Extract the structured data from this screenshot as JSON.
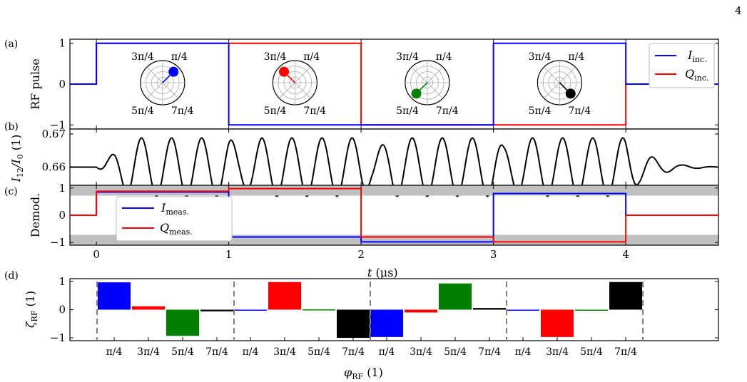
{
  "page_number": "4",
  "panel_labels": [
    "(a)",
    "(b)",
    "(c)",
    "(d)"
  ],
  "colors": {
    "i_series": "#0000ff",
    "q_series": "#ff0000",
    "signal": "#000000",
    "band": "#c0c0c0",
    "phase_colors": [
      "#0000ff",
      "#ff0000",
      "#008000",
      "#000000"
    ]
  },
  "chart_data": [
    {
      "type": "line",
      "panel": "(a)",
      "ylabel": "RF pulse",
      "xlim": [
        -0.2,
        4.7
      ],
      "ylim": [
        -1.1,
        1.1
      ],
      "yticks": [
        "1",
        "0",
        "−1"
      ],
      "ytick_values": [
        1,
        0,
        -1
      ],
      "legend": {
        "placement": "top-right",
        "entries": [
          {
            "base": "I",
            "sub": "inc.",
            "color": "#0000ff"
          },
          {
            "base": "Q",
            "sub": "inc.",
            "color": "#ff0000"
          }
        ]
      },
      "series": [
        {
          "name": "I_inc.",
          "color": "#0000ff",
          "x": [
            -0.2,
            0,
            0,
            1,
            1,
            2,
            2,
            3,
            3,
            4,
            4,
            4.7
          ],
          "y": [
            0,
            0,
            1,
            1,
            -1,
            -1,
            -1,
            -1,
            1,
            1,
            0,
            0
          ]
        },
        {
          "name": "Q_inc.",
          "color": "#ff0000",
          "x": [
            -0.2,
            0,
            0,
            1,
            1,
            2,
            2,
            3,
            3,
            4,
            4,
            4.7
          ],
          "y": [
            0,
            0,
            1,
            1,
            1,
            1,
            -1,
            -1,
            -1,
            -1,
            0,
            0
          ]
        }
      ],
      "polar_insets": [
        {
          "t_center": 0.5,
          "angle": 0.785,
          "color": "#0000ff",
          "labels": [
            "3π/4",
            "π/4",
            "5π/4",
            "7π/4"
          ]
        },
        {
          "t_center": 1.5,
          "angle": 2.356,
          "color": "#ff0000",
          "labels": [
            "3π/4",
            "π/4",
            "5π/4",
            "7π/4"
          ]
        },
        {
          "t_center": 2.5,
          "angle": 3.927,
          "color": "#008000",
          "labels": [
            "3π/4",
            "π/4",
            "5π/4",
            "7π/4"
          ]
        },
        {
          "t_center": 3.5,
          "angle": 5.498,
          "color": "#000000",
          "labels": [
            "3π/4",
            "π/4",
            "5π/4",
            "7π/4"
          ]
        }
      ]
    },
    {
      "type": "line",
      "panel": "(b)",
      "ylabel": {
        "base": "I",
        "sub": "12",
        "mid": "/I",
        "sub2": "0",
        "tail": " (1)"
      },
      "xlim": [
        -0.2,
        4.7
      ],
      "ylim": [
        0.6545,
        0.6715
      ],
      "yticks": [
        "0.67",
        "0.66"
      ],
      "ytick_values": [
        0.67,
        0.66
      ],
      "series": [
        {
          "name": "signal",
          "color": "#000000",
          "baseline": 0.66,
          "amplitude": 0.0088,
          "cycles_per_us": 4.4,
          "envelope": {
            "t": [
              -0.2,
              0.0,
              0.1,
              0.25,
              1.0,
              1.08,
              1.25,
              2.0,
              2.08,
              2.25,
              3.0,
              3.08,
              3.25,
              4.0,
              4.1,
              4.25,
              4.4,
              4.7
            ],
            "a": [
              0,
              0,
              0.35,
              1,
              1,
              0.7,
              1,
              1,
              0.55,
              1,
              1,
              0.7,
              1,
              1,
              0.55,
              0.25,
              0.08,
              0
            ]
          }
        }
      ]
    },
    {
      "type": "line",
      "panel": "(c)",
      "ylabel": "Demod.",
      "xlim": [
        -0.2,
        4.7
      ],
      "ylim": [
        -1.1,
        1.1
      ],
      "xlabel": {
        "base": "t",
        "tail": " (μs)"
      },
      "xticks": [
        "0",
        "1",
        "2",
        "3",
        "4"
      ],
      "xtick_values": [
        0,
        1,
        2,
        3,
        4
      ],
      "yticks": [
        "1",
        "0",
        "−1"
      ],
      "ytick_values": [
        1,
        0,
        -1
      ],
      "bands": [
        {
          "y0": 0.72,
          "y1": 1.1
        },
        {
          "y0": -1.1,
          "y1": -0.72
        }
      ],
      "legend": {
        "placement": "upper-left",
        "entries": [
          {
            "base": "I",
            "sub": "meas.",
            "color": "#0000ff"
          },
          {
            "base": "Q",
            "sub": "meas.",
            "color": "#ff0000"
          }
        ]
      },
      "series": [
        {
          "name": "I_meas.",
          "color": "#0000ff",
          "x": [
            -0.2,
            0,
            0,
            1,
            1,
            2,
            2,
            3,
            3,
            4,
            4,
            4.7
          ],
          "y": [
            0,
            0,
            0.85,
            0.85,
            -0.8,
            -0.8,
            -0.98,
            -0.98,
            0.8,
            0.8,
            0,
            0
          ]
        },
        {
          "name": "Q_meas.",
          "color": "#ff0000",
          "x": [
            -0.2,
            0,
            0,
            1,
            1,
            2,
            2,
            3,
            3,
            4,
            4,
            4.7
          ],
          "y": [
            0,
            0,
            0.88,
            0.88,
            0.98,
            0.98,
            -0.8,
            -0.8,
            -0.98,
            -0.98,
            0,
            0
          ]
        }
      ]
    },
    {
      "type": "bar",
      "panel": "(d)",
      "ylabel": {
        "base": "ζ",
        "sub": "RF",
        "tail": " (1)"
      },
      "xlabel": {
        "base": "φ",
        "sub": "RF",
        "tail": " (1)"
      },
      "ylim": [
        -1.1,
        1.1
      ],
      "yticks": [
        "1",
        "0",
        "−1"
      ],
      "ytick_values": [
        1,
        0,
        -1
      ],
      "groups": [
        {
          "categories": [
            "π/4",
            "3π/4",
            "5π/4",
            "7π/4"
          ],
          "values": [
            0.97,
            0.12,
            -0.93,
            -0.06
          ]
        },
        {
          "categories": [
            "π/4",
            "3π/4",
            "5π/4",
            "7π/4"
          ],
          "values": [
            -0.02,
            0.98,
            0.01,
            -1.0
          ]
        },
        {
          "categories": [
            "π/4",
            "3π/4",
            "5π/4",
            "7π/4"
          ],
          "values": [
            -0.97,
            -0.1,
            0.93,
            0.06
          ]
        },
        {
          "categories": [
            "π/4",
            "3π/4",
            "5π/4",
            "7π/4"
          ],
          "values": [
            0.0,
            -0.97,
            0.0,
            0.98
          ]
        }
      ],
      "bar_colors": [
        "#0000ff",
        "#ff0000",
        "#008000",
        "#000000"
      ]
    }
  ]
}
